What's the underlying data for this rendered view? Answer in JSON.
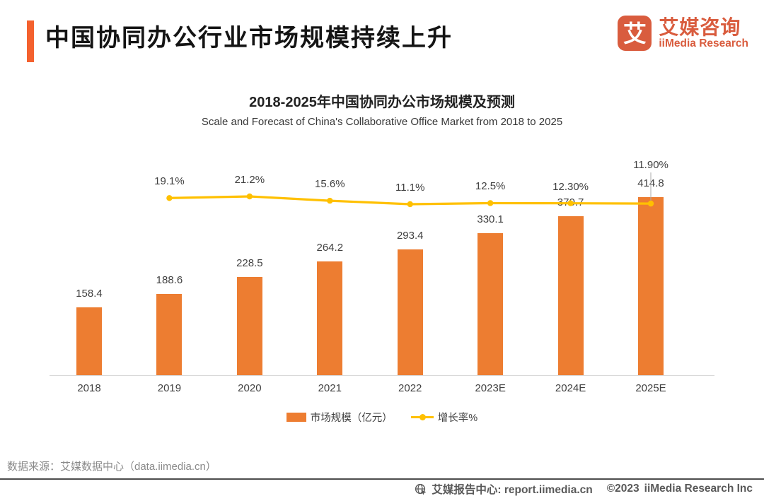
{
  "colors": {
    "accent": "#F4612E",
    "brand": "#D95C3E",
    "bar": "#ED7D31",
    "line": "#FFC000",
    "leader": "#ABABAB"
  },
  "header": {
    "title": "中国协同办公行业市场规模持续上升",
    "logo": {
      "glyph": "艾",
      "brand_cn": "艾媒咨询",
      "brand_en": "iiMedia Research"
    }
  },
  "chart": {
    "title": "2018-2025年中国协同办公市场规模及预测",
    "subtitle": "Scale and Forecast of China's Collaborative Office Market from 2018 to 2025",
    "legend": [
      {
        "label": "市场规模（亿元）",
        "marker": "bar"
      },
      {
        "label": "增长率%",
        "marker": "line"
      }
    ]
  },
  "chart_data": {
    "type": "bar+line",
    "title": "2018-2025年中国协同办公市场规模及预测",
    "xlabel": "",
    "ylabel": "",
    "categories": [
      "2018",
      "2019",
      "2020",
      "2021",
      "2022",
      "2023E",
      "2024E",
      "2025E"
    ],
    "series": [
      {
        "name": "市场规模（亿元）",
        "type": "bar",
        "values": [
          158.4,
          188.6,
          228.5,
          264.2,
          293.4,
          330.1,
          370.7,
          414.8
        ],
        "labels": [
          "158.4",
          "188.6",
          "228.5",
          "264.2",
          "293.4",
          "330.1",
          "370.7",
          "414.8"
        ]
      },
      {
        "name": "增长率%",
        "type": "line",
        "values": [
          null,
          19.1,
          21.2,
          15.6,
          11.1,
          12.5,
          12.3,
          11.9
        ],
        "labels": [
          null,
          "19.1%",
          "21.2%",
          "15.6%",
          "11.1%",
          "12.5%",
          "12.30%",
          "11.90%"
        ]
      }
    ],
    "ylim": [
      0,
      450
    ],
    "y2lim": [
      0,
      25
    ],
    "grid": false,
    "legend_position": "bottom"
  },
  "source": "数据来源：艾媒数据中心（data.iimedia.cn）",
  "footer": {
    "site": "艾媒报告中心: report.iimedia.cn",
    "copyright": "©2023",
    "company": "iiMedia Research Inc"
  }
}
